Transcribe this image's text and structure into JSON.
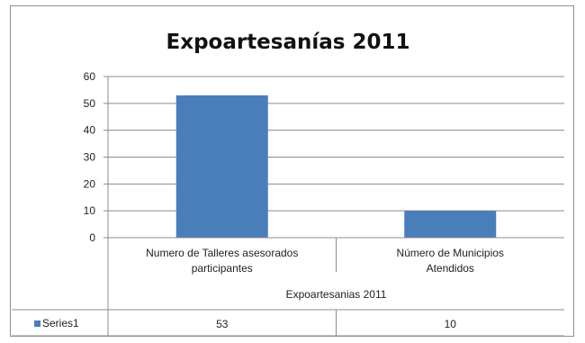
{
  "chart_data": {
    "type": "bar",
    "title": "Expoartesanías 2011",
    "categories": [
      "Numero de Talleres asesorados participantes",
      "Número de Municipios Atendidos"
    ],
    "category_lines": [
      [
        "Numero de Talleres asesorados",
        "participantes"
      ],
      [
        "Número de Municipios",
        "Atendidos"
      ]
    ],
    "group_label": "Expoartesanias  2011",
    "series": [
      {
        "name": "Series1",
        "values": [
          53,
          10
        ],
        "value_labels": [
          "53",
          "10"
        ],
        "color": "#4a7ebb"
      }
    ],
    "ylim": [
      0,
      60
    ],
    "yticks": [
      0,
      10,
      20,
      30,
      40,
      50,
      60
    ],
    "grid": true,
    "legend": "data-table-left"
  }
}
